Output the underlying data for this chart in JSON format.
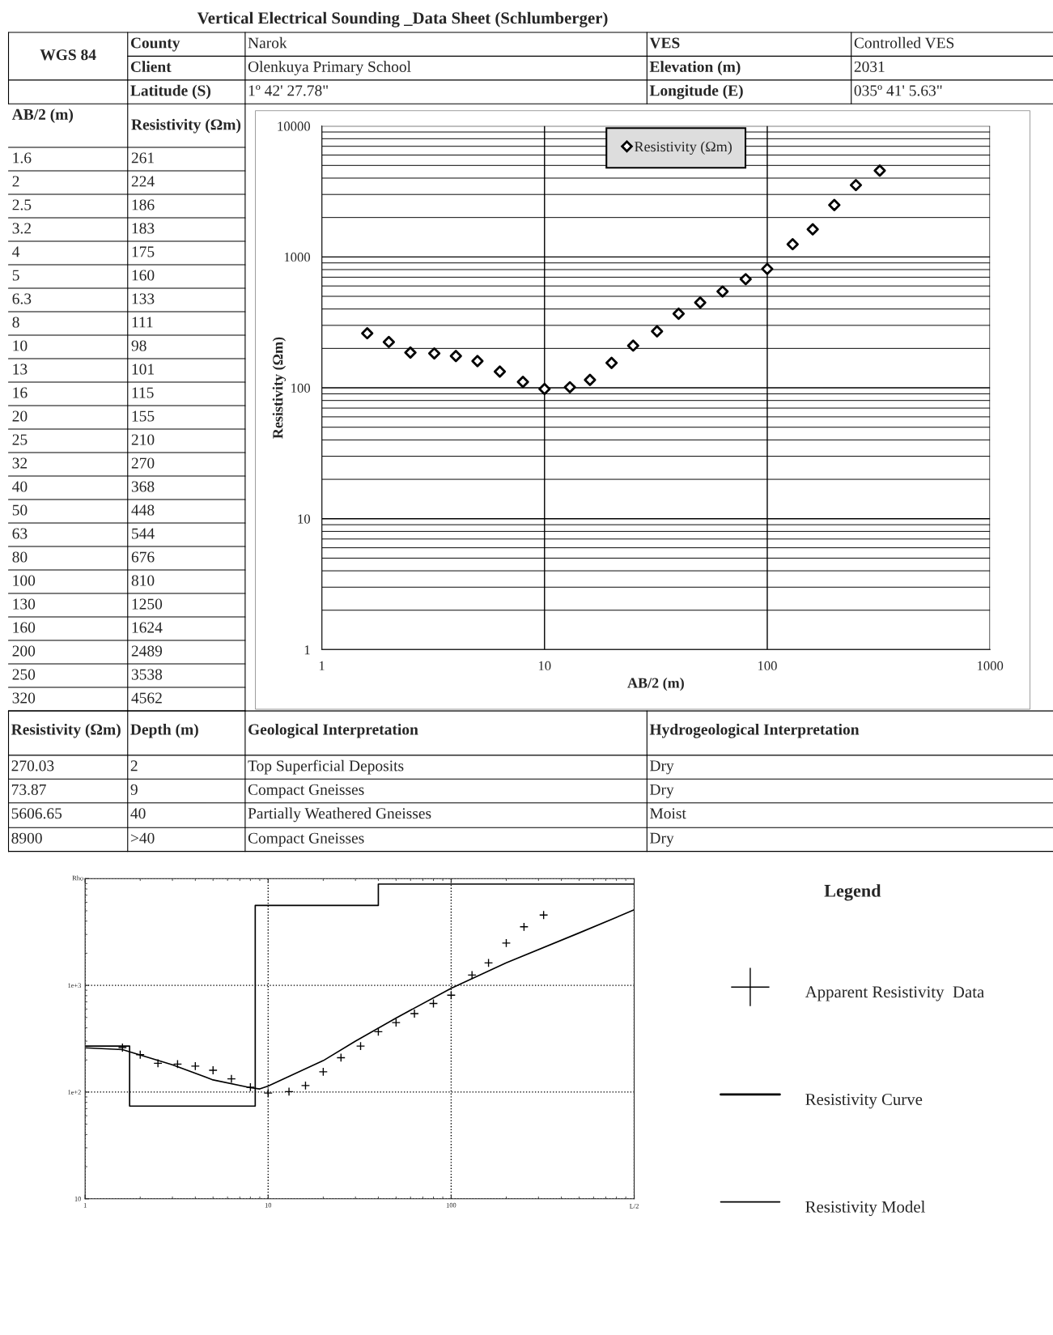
{
  "chart_data": [
    {
      "type": "other",
      "title": "Vertical Electrical Sounding _Data Sheet (Schlumberger)",
      "annotations": [
        "WGS 84",
        "County",
        "Narok",
        "VES",
        "Controlled VES",
        "Client",
        "Olenkuya Primary School",
        "Elevation (m)",
        "2031",
        "Latitude (S)",
        "1º 42' 27.78\"",
        "Longitude (E)",
        "035º 41' 5.63\""
      ]
    },
    {
      "type": "other",
      "annotations": [
        "AB/2 (m)",
        "Resistivity (Ωm)",
        "1.6",
        "261",
        "2",
        "224",
        "2.5",
        "186",
        "3.2",
        "183",
        "4",
        "175",
        "5",
        "160",
        "6.3",
        "133",
        "8",
        "111",
        "10",
        "98",
        "13",
        "101",
        "16",
        "115",
        "20",
        "155",
        "25",
        "210",
        "32",
        "270",
        "40",
        "368",
        "50",
        "448",
        "63",
        "544",
        "80",
        "676",
        "100",
        "810",
        "130",
        "1250",
        "160",
        "1624",
        "200",
        "2489",
        "250",
        "3538",
        "320",
        "4562"
      ]
    },
    {
      "type": "scatter",
      "xlabel": "AB/2 (m)",
      "ylabel": "Resistivity (Ωm)",
      "x": [
        1.6,
        2,
        2.5,
        3.2,
        4,
        5,
        6.3,
        8,
        10,
        13,
        16,
        20,
        25,
        32,
        40,
        50,
        63,
        80,
        100,
        130,
        160,
        200,
        250,
        320
      ],
      "series": [
        {
          "name": "Resistivity (Ωm)",
          "color": "#000000",
          "values": [
            261,
            224,
            186,
            183,
            175,
            160,
            133,
            111,
            98,
            101,
            115,
            155,
            210,
            270,
            368,
            448,
            544,
            676,
            810,
            1250,
            1624,
            2489,
            3538,
            4562
          ]
        }
      ],
      "log": "xy",
      "xlim": [
        1,
        1000
      ],
      "ylim": [
        1,
        10000
      ],
      "xticks": [
        1,
        10,
        100,
        1000
      ],
      "yticks": [
        1,
        10,
        100,
        1000,
        10000
      ],
      "grid": true,
      "legend": "top",
      "marker": "diamond"
    },
    {
      "type": "other",
      "annotations": [
        "Resistivity (Ωm)",
        "Depth (m)",
        "Geological Interpretation",
        "Hydrogeological Interpretation",
        "270.03",
        "2",
        "Top Superficial Deposits",
        "Dry",
        "73.87",
        "9",
        "Compact Gneisses",
        "Dry",
        "5606.65",
        "40",
        "Partially Weathered Gneisses",
        "Moist",
        "8900",
        ">40",
        "Compact Gneisses",
        "Dry"
      ]
    },
    {
      "type": "line",
      "legend_title": "Legend",
      "xlabel": "L/2",
      "ylabel": "Rho",
      "log": "xy",
      "xlim": [
        1,
        1000
      ],
      "ylim": [
        10,
        10000
      ],
      "xticks": [
        1,
        10,
        100,
        {
          "value": 1000,
          "label": null
        }
      ],
      "yticks": [
        10,
        {
          "value": 100,
          "label": "1e+2"
        },
        {
          "value": 1000,
          "label": "1e+3"
        },
        {
          "value": 10000,
          "label": null
        }
      ],
      "grid": true,
      "legend": "right",
      "series": [
        {
          "name": "Apparent Resistivity  Data",
          "type": "scatter",
          "marker": "cross",
          "color": "#000000",
          "x": [
            1.6,
            2,
            2.5,
            3.2,
            4,
            5,
            6.3,
            8,
            10,
            13,
            16,
            20,
            25,
            32,
            40,
            50,
            63,
            80,
            100,
            130,
            160,
            200,
            250,
            320
          ],
          "values": [
            261,
            224,
            186,
            183,
            175,
            160,
            133,
            111,
            98,
            101,
            115,
            155,
            210,
            270,
            368,
            448,
            544,
            676,
            810,
            1250,
            1624,
            2489,
            3538,
            4562
          ]
        },
        {
          "name": "Resistivity Curve",
          "type": "line",
          "marker": "none",
          "color": "#000000",
          "x": [
            1,
            1.6,
            3,
            5,
            8,
            9,
            10,
            20,
            30,
            50,
            100,
            200,
            500,
            1000
          ],
          "values": [
            260,
            250,
            180,
            130,
            110,
            107,
            114,
            197,
            300,
            494,
            940,
            1630,
            3100,
            5100
          ]
        },
        {
          "name": "Resistivity Model",
          "type": "step",
          "marker": "none",
          "color": "#000000",
          "x": [
            1,
            1.75,
            8.5,
            40,
            1000
          ],
          "values": [
            270.03,
            73.87,
            5606.65,
            8900,
            8900
          ]
        }
      ]
    }
  ]
}
